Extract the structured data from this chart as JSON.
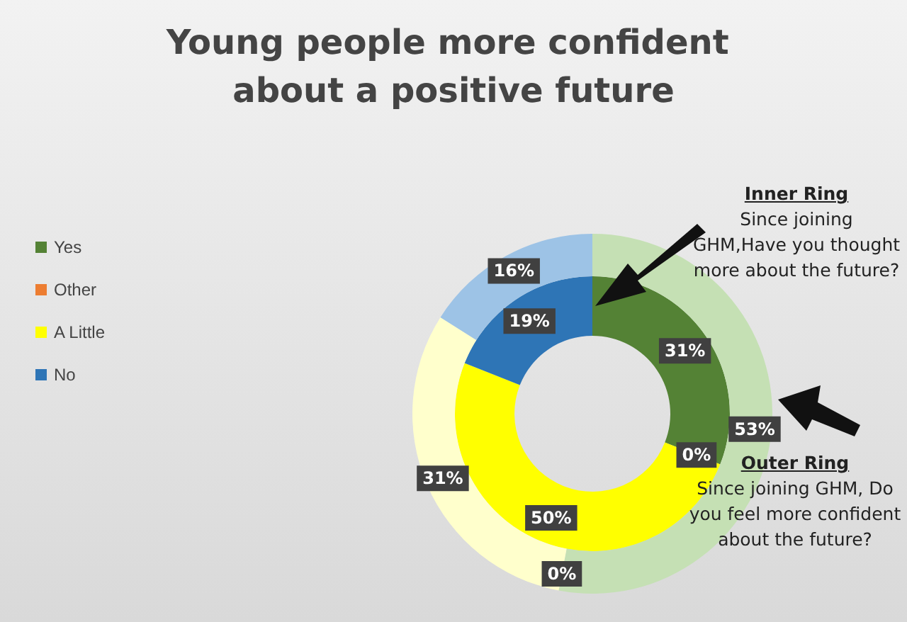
{
  "chart_data": {
    "type": "donut",
    "title": "Young people more confident about a positive future",
    "categories": [
      "Yes",
      "Other",
      "A Little",
      "No"
    ],
    "legend": "left",
    "series": [
      {
        "colors": [
          "#548235",
          "#ed7d31",
          "#ffff00",
          "#2e75b6"
        ],
        "values": [
          31,
          0,
          50,
          19
        ],
        "value_labels": [
          "31%",
          "0%",
          "50%",
          "19%"
        ]
      },
      {
        "colors": [
          "#c5e0b4",
          "#f8cbad",
          "#ffffcc",
          "#9dc3e6"
        ],
        "values": [
          53,
          0,
          31,
          16
        ],
        "value_labels": [
          "53%",
          "0%",
          "31%",
          "16%"
        ]
      }
    ],
    "annotations": [
      "Inner Ring",
      "Since joining GHM,Have you thought more about the future?",
      "Outer Ring",
      "Since joining GHM, Do you feel more confident about the future?"
    ]
  }
}
